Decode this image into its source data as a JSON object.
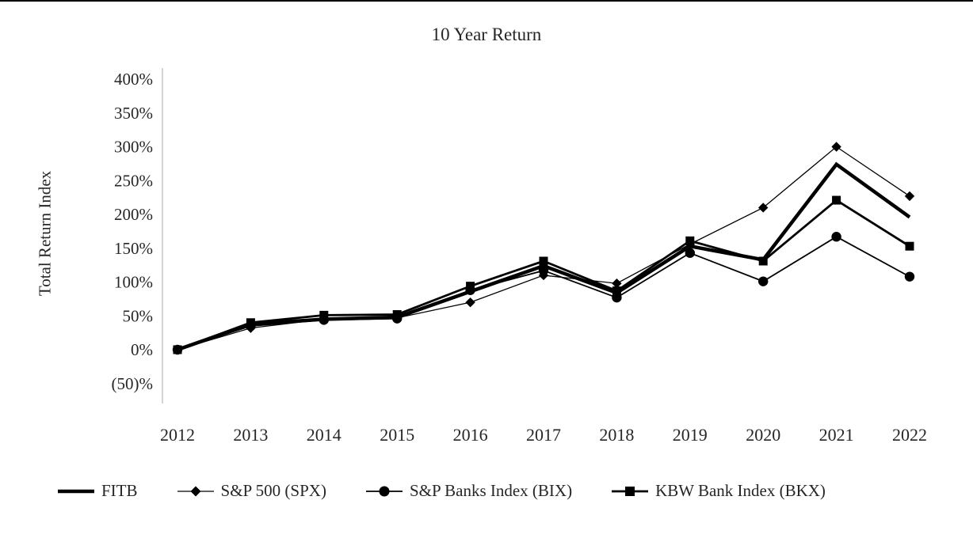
{
  "chart_data": {
    "type": "line",
    "title": "10 Year Return",
    "xlabel": "",
    "ylabel": "Total Return Index",
    "ylim": [
      -50,
      400
    ],
    "y_tick_step": 50,
    "grid": false,
    "legend_position": "bottom",
    "line_color": "#000000",
    "axis_line_color": "#b7b7b7",
    "categories": [
      "2012",
      "2013",
      "2014",
      "2015",
      "2016",
      "2017",
      "2018",
      "2019",
      "2020",
      "2021",
      "2022"
    ],
    "y_ticks": [
      {
        "label": "400%",
        "value": 400
      },
      {
        "label": "350%",
        "value": 350
      },
      {
        "label": "300%",
        "value": 300
      },
      {
        "label": "250%",
        "value": 250
      },
      {
        "label": "200%",
        "value": 200
      },
      {
        "label": "150%",
        "value": 150
      },
      {
        "label": "100%",
        "value": 100
      },
      {
        "label": "50%",
        "value": 50
      },
      {
        "label": "0%",
        "value": 0
      },
      {
        "label": "(50)%",
        "value": -50
      }
    ],
    "series": [
      {
        "name": "FITB",
        "marker": "none",
        "line_width": 4.5,
        "color": "#000000",
        "values": [
          0,
          38,
          45,
          48,
          86,
          124,
          84,
          153,
          133,
          274,
          196
        ]
      },
      {
        "name": "S&P 500 (SPX)",
        "marker": "diamond",
        "line_width": 1.3,
        "color": "#000000",
        "values": [
          0,
          32,
          45,
          47,
          70,
          110,
          98,
          156,
          210,
          300,
          227
        ]
      },
      {
        "name": "S&P Banks Index (BIX)",
        "marker": "circle",
        "line_width": 1.8,
        "color": "#000000",
        "values": [
          0,
          35,
          44,
          46,
          88,
          117,
          77,
          143,
          101,
          167,
          108
        ]
      },
      {
        "name": "KBW Bank Index (BKX)",
        "marker": "square",
        "line_width": 2.8,
        "color": "#000000",
        "values": [
          0,
          40,
          51,
          52,
          94,
          131,
          87,
          161,
          131,
          221,
          153
        ]
      }
    ]
  }
}
